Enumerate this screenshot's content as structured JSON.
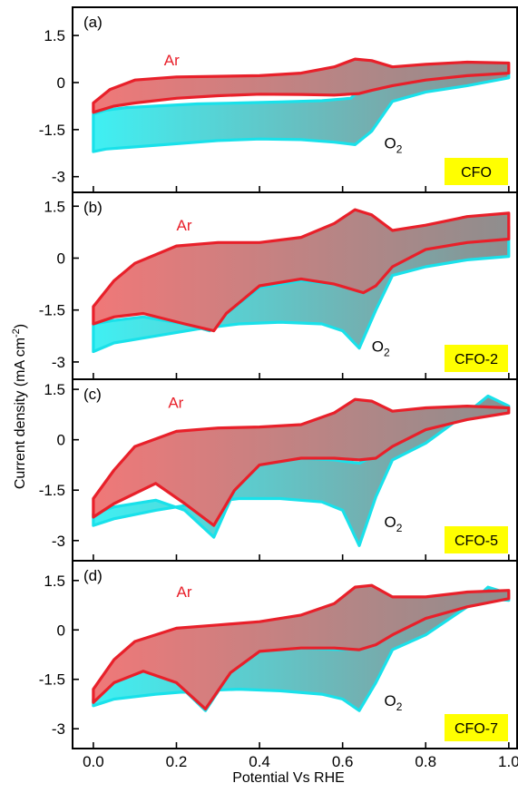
{
  "figure": {
    "xlabel": "Potential Vs RHE",
    "ylabel": "Current density (mA cm",
    "ylabel_sup": "-2",
    "ylabel_close": ")",
    "x_ticks": [
      "0.0",
      "0.2",
      "0.4",
      "0.6",
      "0.8",
      "1.0"
    ],
    "colors": {
      "ar": "#e8202a",
      "o2": "#19e1ea",
      "ar_fill_start": "#f07878",
      "o2_fill_start": "#3ff0f3",
      "fill_end": "#8e8e8e",
      "badge": "#ffff00"
    }
  },
  "chart_data": [
    {
      "type": "line",
      "panel": "(a)",
      "badge": "CFO",
      "ar_label": "Ar",
      "o2_label": "O",
      "o2_sub": "2",
      "xlim": [
        -0.05,
        1.02
      ],
      "ylim": [
        -3.5,
        2.4
      ],
      "y_ticks": [
        1.5,
        0,
        -1.5,
        -3
      ],
      "y_tick_labels": [
        "1.5",
        "0",
        "-1.5",
        "-3"
      ],
      "series": [
        {
          "key": "o2",
          "color": "#19e1ea",
          "x": [
            0.0,
            0.0,
            0.03,
            0.1,
            0.2,
            0.3,
            0.4,
            0.5,
            0.58,
            0.63,
            0.67,
            0.72,
            0.8,
            0.9,
            1.0,
            1.0,
            0.9,
            0.8,
            0.7,
            0.66,
            0.62,
            0.55,
            0.45,
            0.35,
            0.25,
            0.15,
            0.08,
            0.03,
            0.0
          ],
          "y": [
            -1.0,
            -2.2,
            -2.12,
            -2.05,
            -1.95,
            -1.85,
            -1.8,
            -1.82,
            -1.9,
            -1.98,
            -1.55,
            -0.6,
            -0.3,
            -0.1,
            0.15,
            0.35,
            0.3,
            0.25,
            0.1,
            0.02,
            -0.5,
            -0.58,
            -0.62,
            -0.65,
            -0.68,
            -0.75,
            -0.8,
            -0.88,
            -1.0
          ]
        },
        {
          "key": "ar",
          "color": "#e8202a",
          "x": [
            0.0,
            0.0,
            0.04,
            0.1,
            0.2,
            0.3,
            0.4,
            0.5,
            0.58,
            0.63,
            0.67,
            0.72,
            0.8,
            0.9,
            1.0,
            1.0,
            0.9,
            0.8,
            0.72,
            0.67,
            0.64,
            0.58,
            0.5,
            0.4,
            0.3,
            0.2,
            0.1,
            0.05,
            0.0
          ],
          "y": [
            -0.95,
            -0.65,
            -0.22,
            0.08,
            0.18,
            0.2,
            0.22,
            0.3,
            0.5,
            0.75,
            0.7,
            0.5,
            0.58,
            0.65,
            0.62,
            0.3,
            0.22,
            0.08,
            -0.1,
            -0.25,
            -0.35,
            -0.4,
            -0.38,
            -0.37,
            -0.42,
            -0.5,
            -0.65,
            -0.75,
            -0.95
          ]
        }
      ]
    },
    {
      "type": "line",
      "panel": "(b)",
      "badge": "CFO-2",
      "ar_label": "Ar",
      "o2_label": "O",
      "o2_sub": "2",
      "xlim": [
        -0.05,
        1.02
      ],
      "ylim": [
        -3.5,
        1.9
      ],
      "y_ticks": [
        1.5,
        0,
        -1.5,
        -3
      ],
      "y_tick_labels": [
        "1.5",
        "0",
        "-1.5",
        "-3"
      ],
      "series": [
        {
          "key": "o2",
          "color": "#19e1ea",
          "x": [
            0.0,
            0.0,
            0.05,
            0.15,
            0.25,
            0.35,
            0.45,
            0.55,
            0.6,
            0.64,
            0.68,
            0.72,
            0.8,
            0.9,
            1.0,
            1.0,
            0.9,
            0.8,
            0.72,
            0.68,
            0.65,
            0.58,
            0.5,
            0.4,
            0.32,
            0.28,
            0.22,
            0.12,
            0.05,
            0.0
          ],
          "y": [
            -1.9,
            -2.7,
            -2.45,
            -2.25,
            -2.05,
            -1.9,
            -1.85,
            -1.9,
            -2.1,
            -2.6,
            -1.5,
            -0.5,
            -0.25,
            -0.05,
            0.05,
            0.9,
            0.7,
            0.3,
            -0.2,
            -0.6,
            -0.9,
            -0.75,
            -0.65,
            -0.85,
            -1.6,
            -2.1,
            -1.9,
            -1.7,
            -1.8,
            -1.9
          ]
        },
        {
          "key": "ar",
          "color": "#e8202a",
          "x": [
            0.0,
            0.0,
            0.05,
            0.1,
            0.2,
            0.3,
            0.4,
            0.5,
            0.58,
            0.63,
            0.67,
            0.72,
            0.8,
            0.9,
            1.0,
            1.0,
            0.9,
            0.8,
            0.72,
            0.68,
            0.65,
            0.58,
            0.5,
            0.4,
            0.32,
            0.29,
            0.22,
            0.12,
            0.05,
            0.0
          ],
          "y": [
            -1.9,
            -1.4,
            -0.65,
            -0.15,
            0.35,
            0.45,
            0.45,
            0.6,
            1.0,
            1.4,
            1.25,
            0.8,
            0.95,
            1.2,
            1.3,
            0.55,
            0.45,
            0.25,
            -0.25,
            -0.8,
            -1.0,
            -0.75,
            -0.6,
            -0.8,
            -1.6,
            -2.1,
            -1.9,
            -1.6,
            -1.7,
            -1.9
          ]
        }
      ]
    },
    {
      "type": "line",
      "panel": "(c)",
      "badge": "CFO-5",
      "ar_label": "Ar",
      "o2_label": "O",
      "o2_sub": "2",
      "xlim": [
        -0.05,
        1.02
      ],
      "ylim": [
        -3.6,
        1.8
      ],
      "y_ticks": [
        1.5,
        0,
        -1.5,
        -3
      ],
      "y_tick_labels": [
        "1.5",
        "0",
        "-1.5",
        "-3"
      ],
      "series": [
        {
          "key": "o2",
          "color": "#19e1ea",
          "x": [
            0.0,
            0.0,
            0.05,
            0.15,
            0.25,
            0.35,
            0.45,
            0.55,
            0.6,
            0.64,
            0.68,
            0.72,
            0.8,
            0.9,
            0.95,
            1.0,
            1.0,
            0.95,
            0.9,
            0.8,
            0.72,
            0.68,
            0.64,
            0.58,
            0.5,
            0.4,
            0.34,
            0.29,
            0.22,
            0.15,
            0.05,
            0.0
          ],
          "y": [
            -2.2,
            -2.55,
            -2.35,
            -2.1,
            -1.9,
            -1.75,
            -1.75,
            -1.85,
            -2.1,
            -3.15,
            -1.7,
            -0.6,
            -0.1,
            0.8,
            1.3,
            1.0,
            0.9,
            0.95,
            0.9,
            0.55,
            -0.1,
            -0.45,
            -0.7,
            -0.6,
            -0.55,
            -0.75,
            -1.5,
            -2.9,
            -2.1,
            -1.8,
            -2.0,
            -2.2
          ]
        },
        {
          "key": "ar",
          "color": "#e8202a",
          "x": [
            0.0,
            0.0,
            0.05,
            0.1,
            0.2,
            0.3,
            0.4,
            0.5,
            0.58,
            0.63,
            0.67,
            0.72,
            0.8,
            0.9,
            1.0,
            1.0,
            0.9,
            0.8,
            0.72,
            0.68,
            0.64,
            0.58,
            0.5,
            0.4,
            0.34,
            0.29,
            0.22,
            0.15,
            0.05,
            0.0
          ],
          "y": [
            -2.3,
            -1.75,
            -0.9,
            -0.2,
            0.25,
            0.35,
            0.38,
            0.45,
            0.8,
            1.2,
            1.15,
            0.85,
            0.95,
            1.0,
            0.95,
            0.8,
            0.6,
            0.3,
            -0.2,
            -0.55,
            -0.6,
            -0.55,
            -0.55,
            -0.75,
            -1.5,
            -2.55,
            -1.9,
            -1.3,
            -1.9,
            -2.3
          ]
        }
      ]
    },
    {
      "type": "line",
      "panel": "(d)",
      "badge": "CFO-7",
      "ar_label": "Ar",
      "o2_label": "O",
      "o2_sub": "2",
      "xlim": [
        -0.05,
        1.02
      ],
      "ylim": [
        -3.6,
        2.1
      ],
      "y_ticks": [
        1.5,
        0,
        -1.5,
        -3
      ],
      "y_tick_labels": [
        "1.5",
        "0",
        "-1.5",
        "-3"
      ],
      "series": [
        {
          "key": "o2",
          "color": "#19e1ea",
          "x": [
            0.0,
            0.0,
            0.05,
            0.15,
            0.25,
            0.35,
            0.45,
            0.55,
            0.6,
            0.64,
            0.68,
            0.72,
            0.8,
            0.9,
            0.95,
            1.0,
            1.0,
            0.95,
            0.9,
            0.8,
            0.72,
            0.66,
            0.6,
            0.5,
            0.4,
            0.33,
            0.27,
            0.2,
            0.12,
            0.05,
            0.0
          ],
          "y": [
            -2.1,
            -2.3,
            -2.1,
            -1.95,
            -1.85,
            -1.8,
            -1.85,
            -1.95,
            -2.1,
            -2.45,
            -1.6,
            -0.6,
            -0.15,
            0.7,
            1.3,
            1.1,
            0.9,
            0.95,
            0.85,
            0.5,
            -0.1,
            -0.5,
            -0.6,
            -0.55,
            -0.65,
            -1.3,
            -2.45,
            -1.6,
            -1.2,
            -1.5,
            -2.1
          ]
        },
        {
          "key": "ar",
          "color": "#e8202a",
          "x": [
            0.0,
            0.0,
            0.05,
            0.1,
            0.2,
            0.3,
            0.4,
            0.5,
            0.58,
            0.63,
            0.67,
            0.72,
            0.8,
            0.9,
            1.0,
            1.0,
            0.9,
            0.8,
            0.72,
            0.68,
            0.64,
            0.58,
            0.5,
            0.4,
            0.33,
            0.27,
            0.2,
            0.12,
            0.05,
            0.0
          ],
          "y": [
            -2.2,
            -1.8,
            -0.9,
            -0.35,
            0.05,
            0.15,
            0.25,
            0.45,
            0.8,
            1.3,
            1.35,
            1.0,
            1.0,
            1.15,
            1.2,
            0.95,
            0.7,
            0.35,
            -0.15,
            -0.45,
            -0.6,
            -0.55,
            -0.55,
            -0.65,
            -1.3,
            -2.4,
            -1.6,
            -1.25,
            -1.6,
            -2.2
          ]
        }
      ]
    }
  ]
}
